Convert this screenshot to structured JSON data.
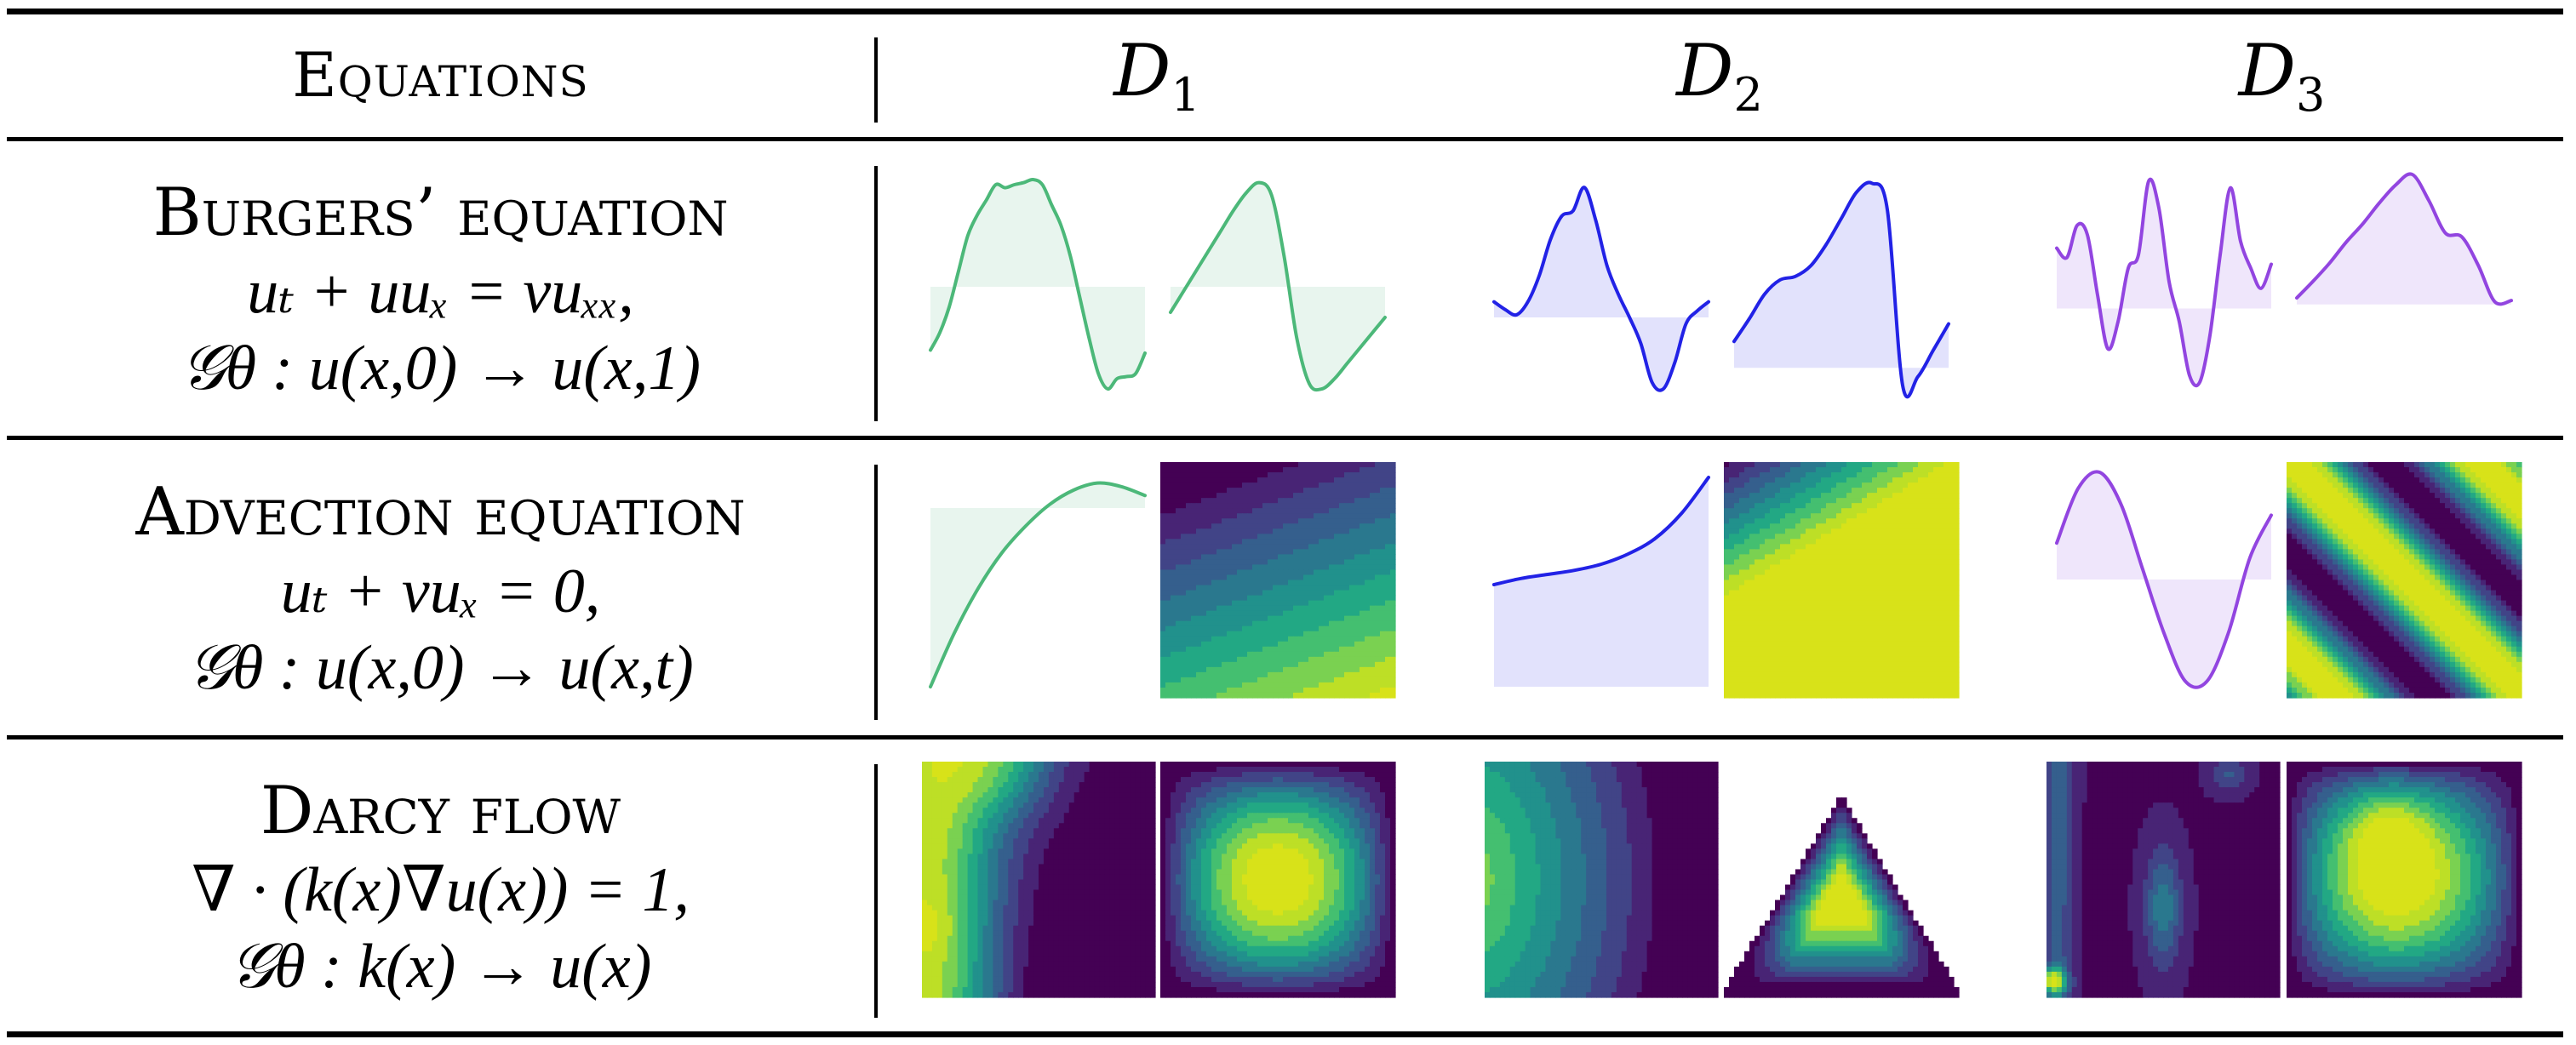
{
  "header": {
    "equations_label": "Equations",
    "datasets": [
      {
        "symbol": "D",
        "subscript": "1"
      },
      {
        "symbol": "D",
        "subscript": "2"
      },
      {
        "symbol": "D",
        "subscript": "3"
      }
    ]
  },
  "rows": [
    {
      "name": "Burgers’ equation",
      "pde": "uₜ + uuₓ = νuₓₓ,",
      "operator": "𝒢θ : u(x,0) → u(x,1)"
    },
    {
      "name": "Advection equation",
      "pde": "uₜ + νuₓ = 0,",
      "operator": "𝒢θ : u(x,0) → u(x,t)"
    },
    {
      "name": "Darcy flow",
      "pde": "∇ · (k(x)∇u(x)) = 1,",
      "operator": "𝒢θ : k(x) → u(x)"
    }
  ],
  "colors": {
    "d1_line": "#4cb879",
    "d1_fill": "#e8f5ee",
    "d2_line": "#2222e6",
    "d2_fill": "#e2e2fc",
    "d3_line": "#9245e0",
    "d3_fill": "#efe6fb",
    "viridis": [
      "#440154",
      "#482475",
      "#414487",
      "#355f8d",
      "#2a788e",
      "#21918c",
      "#22a884",
      "#44bf70",
      "#7ad151",
      "#bddf26",
      "#d8e219"
    ]
  },
  "chart_data": [
    {
      "type": "line",
      "row": "burgers",
      "dataset": "D1",
      "panel": "input u(x,0)",
      "baseline": 0,
      "ylim": [
        -1,
        1.1
      ],
      "y": [
        -0.62,
        -0.45,
        -0.2,
        0.15,
        0.5,
        0.7,
        0.85,
        1.0,
        0.97,
        1.0,
        1.02,
        1.05,
        1.0,
        0.8,
        0.6,
        0.3,
        -0.1,
        -0.5,
        -0.85,
        -1.0,
        -0.9,
        -0.88,
        -0.85,
        -0.65
      ]
    },
    {
      "type": "line",
      "row": "burgers",
      "dataset": "D1",
      "panel": "output u(x,1)",
      "baseline": 0,
      "ylim": [
        -1,
        1.1
      ],
      "y": [
        -0.25,
        -0.05,
        0.15,
        0.35,
        0.55,
        0.75,
        0.92,
        1.02,
        0.9,
        0.3,
        -0.5,
        -0.95,
        -1.0,
        -0.9,
        -0.75,
        -0.6,
        -0.45,
        -0.3
      ]
    },
    {
      "type": "line",
      "row": "burgers",
      "dataset": "D2",
      "panel": "input u(x,0)",
      "baseline": 0,
      "ylim": [
        -0.55,
        1.1
      ],
      "y": [
        0.12,
        0.06,
        0.02,
        0.12,
        0.32,
        0.6,
        0.78,
        0.82,
        1.0,
        0.75,
        0.4,
        0.18,
        0.0,
        -0.2,
        -0.5,
        -0.55,
        -0.35,
        -0.05,
        0.05,
        0.12
      ]
    },
    {
      "type": "line",
      "row": "burgers",
      "dataset": "D2",
      "panel": "output u(x,1)",
      "baseline": 0,
      "ylim": [
        -0.12,
        1.1
      ],
      "y": [
        0.15,
        0.28,
        0.42,
        0.5,
        0.52,
        0.58,
        0.7,
        0.85,
        1.0,
        1.05,
        0.9,
        -0.1,
        -0.05,
        0.1,
        0.25
      ]
    },
    {
      "type": "line",
      "row": "burgers",
      "dataset": "D3",
      "panel": "input u(x,0)",
      "baseline": 0,
      "ylim": [
        -0.6,
        1.0
      ],
      "y": [
        0.45,
        0.38,
        0.62,
        0.55,
        0.1,
        -0.3,
        -0.1,
        0.3,
        0.4,
        0.95,
        0.75,
        0.2,
        -0.1,
        -0.5,
        -0.55,
        -0.2,
        0.4,
        0.9,
        0.5,
        0.3,
        0.15,
        0.33
      ]
    },
    {
      "type": "line",
      "row": "burgers",
      "dataset": "D3",
      "panel": "output u(x,1)",
      "baseline": 0,
      "ylim": [
        -0.65,
        1.0
      ],
      "y": [
        0.05,
        0.18,
        0.32,
        0.48,
        0.62,
        0.78,
        0.92,
        1.0,
        0.8,
        0.55,
        0.52,
        0.3,
        0.02,
        0.03
      ]
    },
    {
      "type": "line",
      "row": "advection",
      "dataset": "D1",
      "panel": "input u(x,0)",
      "baseline": 0,
      "ylim": [
        -1,
        0.2
      ],
      "y": [
        -1.0,
        -0.7,
        -0.45,
        -0.25,
        -0.1,
        0.02,
        0.1,
        0.14,
        0.12,
        0.07
      ]
    },
    {
      "type": "heatmap",
      "row": "advection",
      "dataset": "D1",
      "panel": "solution u(x,t)",
      "pattern": "shallow diagonal bands, dark top-left to yellow bottom-right"
    },
    {
      "type": "line",
      "row": "advection",
      "dataset": "D2",
      "panel": "input u(x,0)",
      "baseline": -1,
      "ylim": [
        -1,
        1.1
      ],
      "y": [
        0.0,
        0.06,
        0.1,
        0.14,
        0.2,
        0.3,
        0.45,
        0.7,
        1.05
      ]
    },
    {
      "type": "heatmap",
      "row": "advection",
      "dataset": "D2",
      "panel": "solution u(x,t)",
      "pattern": "diagonal bands in upper-left, yellow lower-right"
    },
    {
      "type": "line",
      "row": "advection",
      "dataset": "D3",
      "panel": "input u(x,0)",
      "baseline": 0,
      "ylim": [
        -1,
        1
      ],
      "y": [
        0.34,
        0.85,
        1.0,
        0.7,
        0.1,
        -0.5,
        -0.95,
        -0.95,
        -0.5,
        0.2,
        0.6
      ]
    },
    {
      "type": "heatmap",
      "row": "advection",
      "dataset": "D3",
      "panel": "solution u(x,t)",
      "pattern": "periodic diagonal stripes"
    },
    {
      "type": "heatmap",
      "row": "darcy",
      "dataset": "D1",
      "panel": "permeability k(x)",
      "pattern": "smooth field, green left, dark right"
    },
    {
      "type": "heatmap",
      "row": "darcy",
      "dataset": "D1",
      "panel": "solution u(x)",
      "pattern": "concentric contours, peak center"
    },
    {
      "type": "heatmap",
      "row": "darcy",
      "dataset": "D2",
      "panel": "permeability k(x)",
      "pattern": "arched bands, green left, dark right"
    },
    {
      "type": "heatmap",
      "row": "darcy",
      "dataset": "D2",
      "panel": "solution u(x)",
      "pattern": "triangular domain, concentric contours"
    },
    {
      "type": "heatmap",
      "row": "darcy",
      "dataset": "D3",
      "panel": "permeability k(x)",
      "pattern": "patchy field, mostly dark"
    },
    {
      "type": "heatmap",
      "row": "darcy",
      "dataset": "D3",
      "panel": "solution u(x)",
      "pattern": "concentric contours, peak upper-left of center"
    }
  ]
}
